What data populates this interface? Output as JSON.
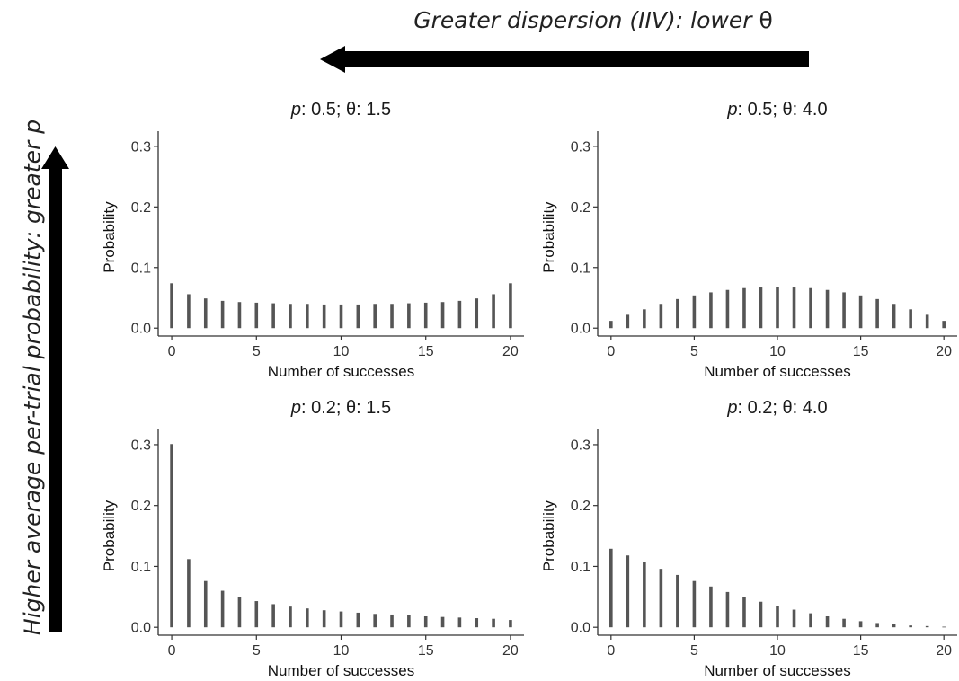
{
  "annotations": {
    "top_arrow_text_prefix": "Greater dispersion (IIV): lower ",
    "top_arrow_text_symbol": "θ",
    "side_arrow_text": "Higher average per-trial probability: greater p"
  },
  "colors": {
    "bar": "#555555",
    "axis": "#333333",
    "arrow": "#000000"
  },
  "chart_data": [
    {
      "type": "bar",
      "title_var": "p",
      "title_rest": ": 0.5; θ: 1.5",
      "xlabel": "Number of successes",
      "ylabel": "Probability",
      "x": [
        0,
        1,
        2,
        3,
        4,
        5,
        6,
        7,
        8,
        9,
        10,
        11,
        12,
        13,
        14,
        15,
        16,
        17,
        18,
        19,
        20
      ],
      "values": [
        0.074,
        0.056,
        0.049,
        0.045,
        0.043,
        0.042,
        0.041,
        0.04,
        0.04,
        0.039,
        0.039,
        0.039,
        0.04,
        0.04,
        0.041,
        0.042,
        0.043,
        0.045,
        0.049,
        0.056,
        0.074
      ],
      "xticks": [
        0,
        5,
        10,
        15,
        20
      ],
      "yticks": [
        0.0,
        0.1,
        0.2,
        0.3
      ],
      "ytick_labels": [
        "0.0",
        "0.1",
        "0.2",
        "0.3"
      ],
      "xlim": [
        -0.8,
        20.8
      ],
      "ylim": [
        -0.013,
        0.325
      ]
    },
    {
      "type": "bar",
      "title_var": "p",
      "title_rest": ": 0.5; θ: 4.0",
      "xlabel": "Number of successes",
      "ylabel": "Probability",
      "x": [
        0,
        1,
        2,
        3,
        4,
        5,
        6,
        7,
        8,
        9,
        10,
        11,
        12,
        13,
        14,
        15,
        16,
        17,
        18,
        19,
        20
      ],
      "values": [
        0.012,
        0.022,
        0.031,
        0.04,
        0.048,
        0.054,
        0.059,
        0.063,
        0.066,
        0.067,
        0.068,
        0.067,
        0.066,
        0.063,
        0.059,
        0.054,
        0.048,
        0.04,
        0.031,
        0.022,
        0.012
      ],
      "xticks": [
        0,
        5,
        10,
        15,
        20
      ],
      "yticks": [
        0.0,
        0.1,
        0.2,
        0.3
      ],
      "ytick_labels": [
        "0.0",
        "0.1",
        "0.2",
        "0.3"
      ],
      "xlim": [
        -0.8,
        20.8
      ],
      "ylim": [
        -0.013,
        0.325
      ]
    },
    {
      "type": "bar",
      "title_var": "p",
      "title_rest": ": 0.2; θ: 1.5",
      "xlabel": "Number of successes",
      "ylabel": "Probability",
      "x": [
        0,
        1,
        2,
        3,
        4,
        5,
        6,
        7,
        8,
        9,
        10,
        11,
        12,
        13,
        14,
        15,
        16,
        17,
        18,
        19,
        20
      ],
      "values": [
        0.301,
        0.112,
        0.076,
        0.06,
        0.05,
        0.043,
        0.038,
        0.034,
        0.031,
        0.028,
        0.026,
        0.024,
        0.022,
        0.021,
        0.02,
        0.018,
        0.017,
        0.016,
        0.015,
        0.014,
        0.012
      ],
      "xticks": [
        0,
        5,
        10,
        15,
        20
      ],
      "yticks": [
        0.0,
        0.1,
        0.2,
        0.3
      ],
      "ytick_labels": [
        "0.0",
        "0.1",
        "0.2",
        "0.3"
      ],
      "xlim": [
        -0.8,
        20.8
      ],
      "ylim": [
        -0.013,
        0.325
      ]
    },
    {
      "type": "bar",
      "title_var": "p",
      "title_rest": ": 0.2; θ: 4.0",
      "xlabel": "Number of successes",
      "ylabel": "Probability",
      "x": [
        0,
        1,
        2,
        3,
        4,
        5,
        6,
        7,
        8,
        9,
        10,
        11,
        12,
        13,
        14,
        15,
        16,
        17,
        18,
        19,
        20
      ],
      "values": [
        0.129,
        0.118,
        0.107,
        0.096,
        0.086,
        0.076,
        0.067,
        0.058,
        0.05,
        0.042,
        0.035,
        0.029,
        0.023,
        0.018,
        0.014,
        0.01,
        0.007,
        0.005,
        0.003,
        0.002,
        0.001
      ],
      "xticks": [
        0,
        5,
        10,
        15,
        20
      ],
      "yticks": [
        0.0,
        0.1,
        0.2,
        0.3
      ],
      "ytick_labels": [
        "0.0",
        "0.1",
        "0.2",
        "0.3"
      ],
      "xlim": [
        -0.8,
        20.8
      ],
      "ylim": [
        -0.013,
        0.325
      ]
    }
  ]
}
